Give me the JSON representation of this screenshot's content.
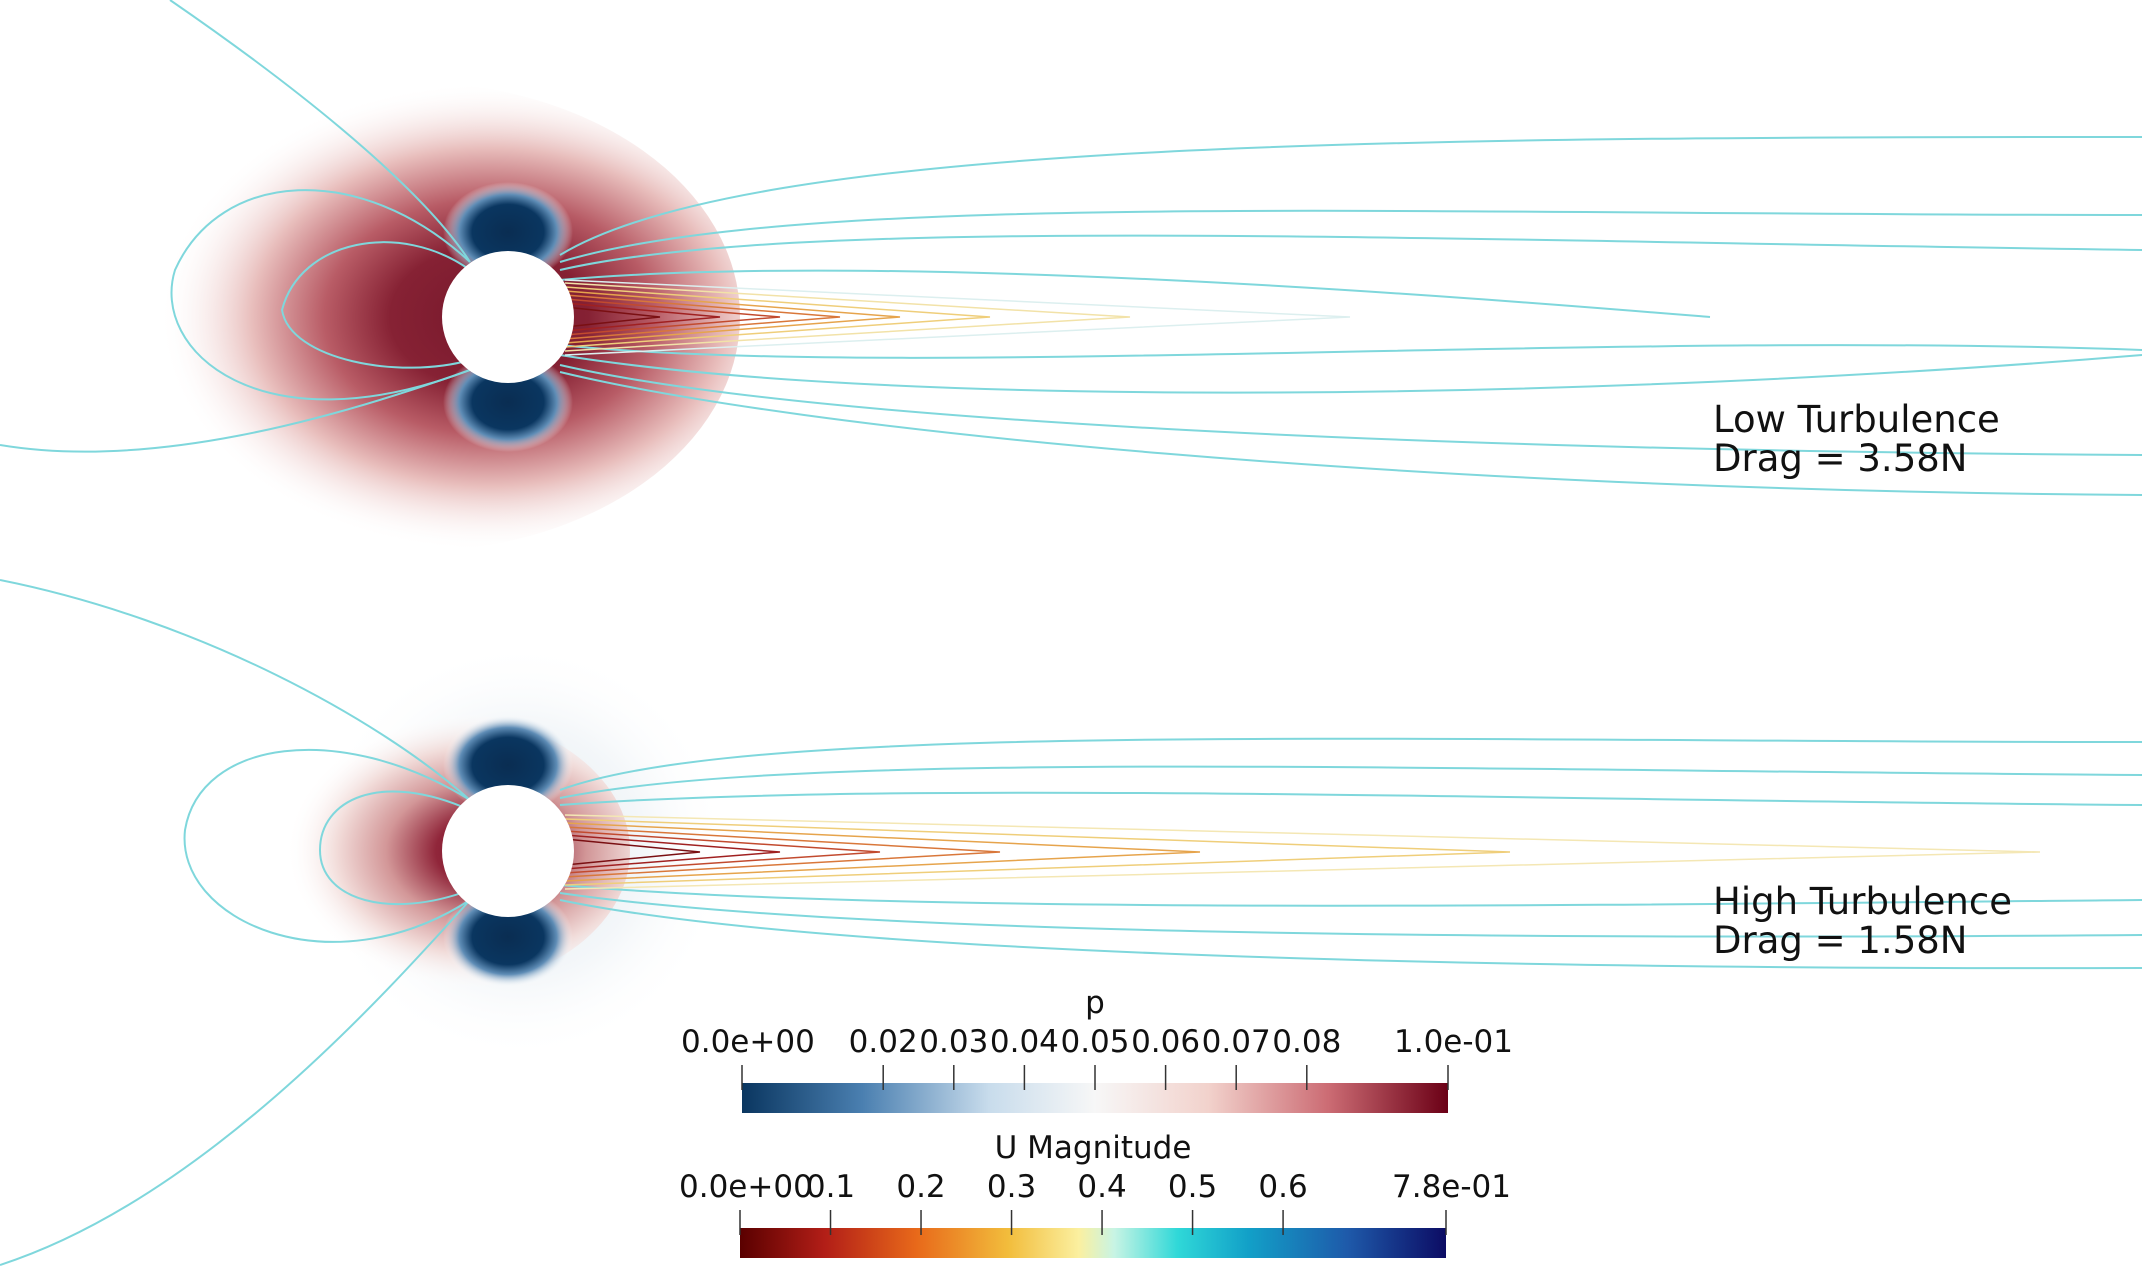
{
  "cases": [
    {
      "name": "Low Turbulence",
      "drag_label": "Drag = 3.58N"
    },
    {
      "name": "High Turbulence",
      "drag_label": "Drag = 1.58N"
    }
  ],
  "colorbars": [
    {
      "title": "p",
      "min_label": "0.0e+00",
      "max_label": "1.0e-01",
      "range": [
        0.0,
        0.1
      ],
      "ticks": [
        0.02,
        0.03,
        0.04,
        0.05,
        0.06,
        0.07,
        0.08
      ],
      "tick_labels": [
        "0.02",
        "0.03",
        "0.04",
        "0.05",
        "0.06",
        "0.07",
        "0.08"
      ],
      "colormap": [
        "#0a3660",
        "#4a7fb0",
        "#c8dcec",
        "#f7f7f7",
        "#f2d2cc",
        "#cc6c74",
        "#6b0016"
      ]
    },
    {
      "title": "U Magnitude",
      "min_label": "0.0e+00",
      "max_label": "7.8e-01",
      "range": [
        0.0,
        0.78
      ],
      "ticks": [
        0.1,
        0.2,
        0.3,
        0.4,
        0.5,
        0.6
      ],
      "tick_labels": [
        "0.1",
        "0.2",
        "0.3",
        "0.4",
        "0.5",
        "0.6"
      ],
      "colormap": [
        "#5a0000",
        "#b21e17",
        "#e8691a",
        "#f2bd3c",
        "#fbf0a0",
        "#c8f4e4",
        "#2fd8d8",
        "#12a0c8",
        "#1e5aaa",
        "#0c0c64"
      ]
    }
  ],
  "colors": {
    "background": "#ffffff",
    "cylinder": "#ffffff",
    "streamline": "#7fd7dc",
    "pressure_high": "#6b0016",
    "pressure_low": "#0a3660"
  }
}
